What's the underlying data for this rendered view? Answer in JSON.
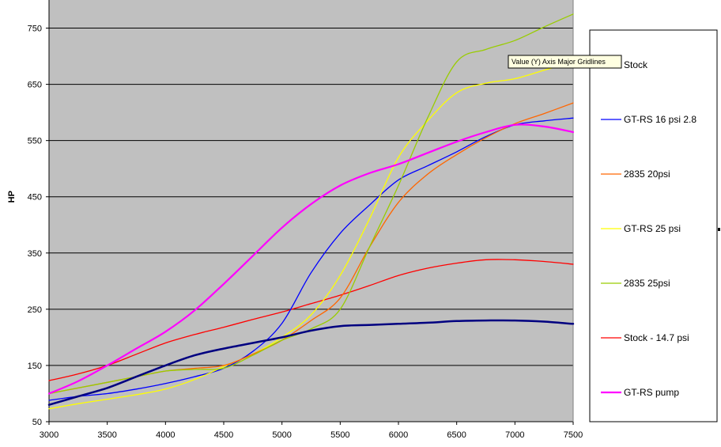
{
  "chart_data": {
    "type": "line",
    "ylabel": "HP",
    "xlim": [
      3000,
      7500
    ],
    "ylim": [
      50,
      800
    ],
    "x_ticks": [
      3000,
      3500,
      4000,
      4500,
      5000,
      5500,
      6000,
      6500,
      7000,
      7500
    ],
    "y_ticks": [
      50,
      150,
      250,
      350,
      450,
      550,
      650,
      750
    ],
    "grid": "horizontal major gridlines",
    "legend_position": "right",
    "plot_background": "#c0c0c0",
    "tooltip": "Value (Y) Axis Major Gridlines",
    "series": [
      {
        "name": "Stock",
        "color": "#000080",
        "width": 2.5,
        "x": [
          3000,
          3250,
          3500,
          3750,
          4000,
          4250,
          4500,
          4750,
          5000,
          5250,
          5500,
          5750,
          6000,
          6250,
          6500,
          6750,
          7000,
          7250,
          7500
        ],
        "y": [
          80,
          95,
          110,
          130,
          150,
          168,
          180,
          190,
          200,
          212,
          220,
          222,
          224,
          226,
          229,
          230,
          230,
          228,
          224
        ]
      },
      {
        "name": "GT-RS 16 psi 2.8",
        "color": "#0000ff",
        "width": 1.3,
        "x": [
          3000,
          3250,
          3500,
          3750,
          4000,
          4250,
          4500,
          4750,
          5000,
          5250,
          5500,
          5750,
          6000,
          6250,
          6500,
          6750,
          7000,
          7250,
          7500
        ],
        "y": [
          88,
          95,
          100,
          108,
          118,
          130,
          145,
          175,
          225,
          315,
          385,
          435,
          480,
          505,
          530,
          557,
          578,
          585,
          590
        ]
      },
      {
        "name": "2835 20psi",
        "color": "#ff6600",
        "width": 1.3,
        "x": [
          3000,
          3250,
          3500,
          3750,
          4000,
          4250,
          4500,
          4750,
          5000,
          5250,
          5500,
          5750,
          6000,
          6250,
          6500,
          6750,
          7000,
          7250,
          7500
        ],
        "y": [
          100,
          110,
          120,
          130,
          140,
          145,
          150,
          170,
          195,
          230,
          270,
          360,
          440,
          490,
          525,
          555,
          580,
          598,
          617
        ]
      },
      {
        "name": "GT-RS 25 psi",
        "color": "#ffff00",
        "width": 1.3,
        "x": [
          3000,
          3250,
          3500,
          3750,
          4000,
          4250,
          4500,
          4750,
          5000,
          5250,
          5500,
          5750,
          6000,
          6250,
          6500,
          6750,
          7000,
          7250,
          7500
        ],
        "y": [
          73,
          82,
          90,
          98,
          108,
          125,
          148,
          170,
          200,
          240,
          310,
          410,
          520,
          585,
          635,
          652,
          660,
          675,
          690
        ]
      },
      {
        "name": "2835 25psi",
        "color": "#99cc00",
        "width": 1.3,
        "x": [
          3000,
          3250,
          3500,
          3750,
          4000,
          4250,
          4500,
          4750,
          5000,
          5250,
          5500,
          5750,
          6000,
          6250,
          6500,
          6750,
          7000,
          7250,
          7500
        ],
        "y": [
          100,
          110,
          120,
          130,
          140,
          143,
          145,
          168,
          195,
          215,
          250,
          360,
          470,
          590,
          690,
          712,
          728,
          752,
          775
        ]
      },
      {
        "name": "Stock - 14.7 psi",
        "color": "#ff0000",
        "width": 1.3,
        "x": [
          3000,
          3250,
          3500,
          3750,
          4000,
          4250,
          4500,
          4750,
          5000,
          5250,
          5500,
          5750,
          6000,
          6250,
          6500,
          6750,
          7000,
          7250,
          7500
        ],
        "y": [
          123,
          135,
          150,
          170,
          190,
          205,
          218,
          232,
          245,
          260,
          275,
          292,
          310,
          323,
          332,
          338,
          338,
          335,
          330
        ]
      },
      {
        "name": "GT-RS pump",
        "color": "#ff00ff",
        "width": 2.2,
        "x": [
          3000,
          3250,
          3500,
          3750,
          4000,
          4250,
          4500,
          4750,
          5000,
          5250,
          5500,
          5750,
          6000,
          6250,
          6500,
          6750,
          7000,
          7250,
          7500
        ],
        "y": [
          100,
          122,
          150,
          180,
          210,
          248,
          295,
          345,
          395,
          437,
          470,
          492,
          508,
          528,
          548,
          565,
          578,
          575,
          565
        ]
      }
    ]
  }
}
